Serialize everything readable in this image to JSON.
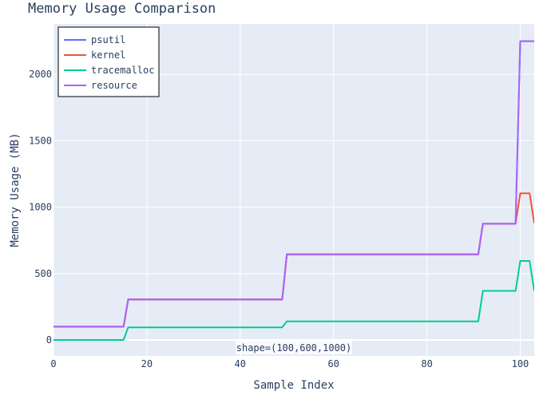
{
  "chart_data": {
    "type": "line",
    "title": "Memory Usage Comparison",
    "xlabel": "Sample Index",
    "ylabel": "Memory Usage (MB)",
    "xlim": [
      0,
      103
    ],
    "ylim": [
      -120,
      2380
    ],
    "x_ticks": [
      0,
      20,
      40,
      60,
      80,
      100
    ],
    "y_ticks": [
      0,
      500,
      1000,
      1500,
      2000
    ],
    "grid": true,
    "legend_position": "top-left",
    "annotation": "shape=(100,600,1000)",
    "colors": {
      "plot_background": "#e5ecf6",
      "grid": "#ffffff"
    },
    "series": [
      {
        "name": "psutil",
        "color": "#636efa",
        "x": [
          0,
          15,
          16,
          49,
          50,
          91,
          92,
          99,
          100,
          101,
          102,
          103
        ],
        "y": [
          100,
          100,
          305,
          305,
          645,
          645,
          875,
          875,
          2250,
          2250,
          2250,
          2250
        ]
      },
      {
        "name": "kernel",
        "color": "#ef553b",
        "x": [
          0,
          15,
          16,
          49,
          50,
          91,
          92,
          99,
          100,
          101,
          102,
          103
        ],
        "y": [
          100,
          100,
          305,
          305,
          645,
          645,
          875,
          875,
          1105,
          1105,
          1105,
          880
        ]
      },
      {
        "name": "tracemalloc",
        "color": "#00cc96",
        "x": [
          0,
          15,
          16,
          49,
          50,
          91,
          92,
          99,
          100,
          101,
          102,
          103
        ],
        "y": [
          0,
          0,
          95,
          95,
          140,
          140,
          370,
          370,
          595,
          595,
          595,
          370
        ]
      },
      {
        "name": "resource",
        "color": "#ab63fa",
        "x": [
          0,
          15,
          16,
          49,
          50,
          91,
          92,
          99,
          100,
          101,
          102,
          103
        ],
        "y": [
          100,
          100,
          305,
          305,
          645,
          645,
          875,
          875,
          2250,
          2250,
          2250,
          2250
        ]
      }
    ]
  }
}
